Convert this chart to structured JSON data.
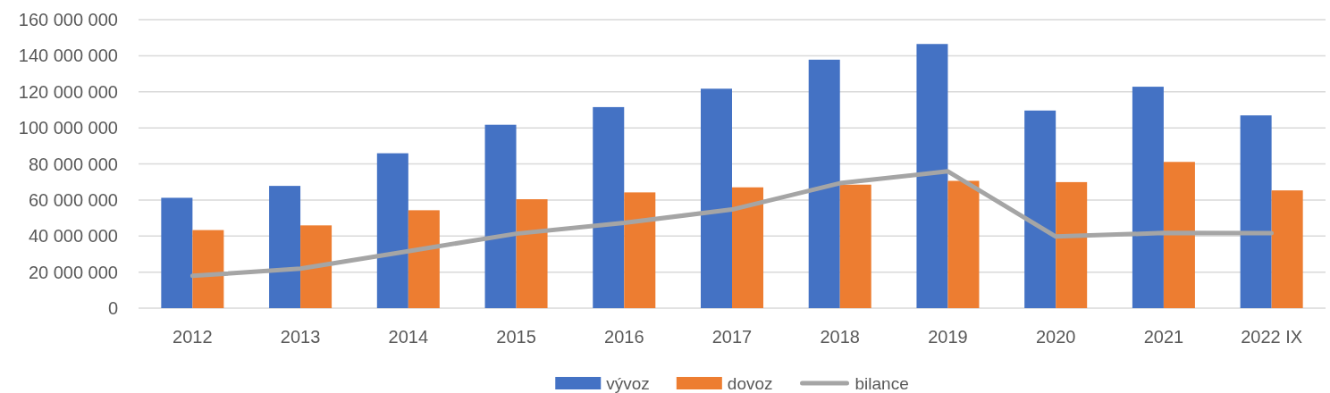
{
  "chart_data": {
    "type": "bar",
    "categories": [
      "2012",
      "2013",
      "2014",
      "2015",
      "2016",
      "2017",
      "2018",
      "2019",
      "2020",
      "2021",
      "2022 IX"
    ],
    "series": [
      {
        "name": "vývoz",
        "color": "#4472c4",
        "values": [
          61200000,
          67800000,
          85900000,
          101700000,
          111500000,
          121700000,
          137800000,
          146500000,
          109600000,
          122800000,
          106900000
        ]
      },
      {
        "name": "dovoz",
        "color": "#ed7d31",
        "values": [
          43300000,
          45900000,
          54300000,
          60400000,
          64200000,
          67000000,
          68500000,
          70600000,
          69900000,
          81100000,
          65300000
        ]
      },
      {
        "name": "bilance",
        "type": "line",
        "color": "#a5a5a5",
        "values": [
          17900000,
          21900000,
          31600000,
          41300000,
          47300000,
          54700000,
          69300000,
          75900000,
          39700000,
          41700000,
          41600000
        ]
      }
    ],
    "ylim": [
      0,
      160000000
    ],
    "yticks": [
      0,
      {
        "value": 20000000,
        "label": "20 000 000"
      },
      {
        "value": 40000000,
        "label": "40 000 000"
      },
      {
        "value": 60000000,
        "label": "60 000 000"
      },
      {
        "value": 80000000,
        "label": "80 000 000"
      },
      {
        "value": 100000000,
        "label": "100 000 000"
      },
      {
        "value": 120000000,
        "label": "120 000 000"
      },
      {
        "value": 140000000,
        "label": "140 000 000"
      },
      {
        "value": 160000000,
        "label": "160 000 000"
      }
    ],
    "grid": "y",
    "legend": "bottom"
  }
}
